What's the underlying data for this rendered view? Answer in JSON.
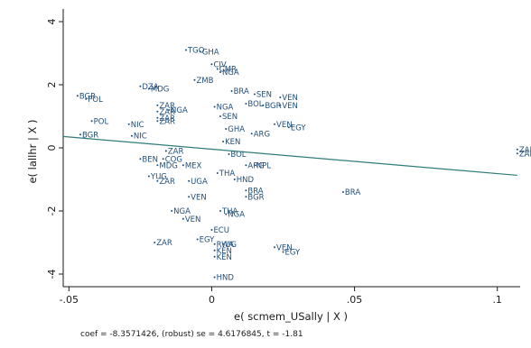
{
  "chart_data": {
    "type": "scatter",
    "title": "",
    "xlabel": "e( scmem_USally | X )",
    "ylabel": "e( lallhr | X )",
    "xlim": [
      -0.052,
      0.108
    ],
    "ylim": [
      -4.4,
      4.4
    ],
    "xticks": [
      -0.05,
      0,
      0.05,
      0.1
    ],
    "xtick_labels": [
      "-.05",
      "0",
      ".05",
      ".1"
    ],
    "yticks": [
      -4,
      -2,
      0,
      2,
      4
    ],
    "ytick_labels": [
      "-4",
      "-2",
      "0",
      "2",
      "4"
    ],
    "grid": false,
    "marker_color": "#1f4e79",
    "fit_line_color": "#2e7d7a",
    "fit_line": {
      "x": [
        -0.052,
        0.107
      ],
      "y": [
        0.36,
        -0.87
      ]
    },
    "note": "coef = -8.3571426, (robust) se = 4.6176845, t = -1.81",
    "labeled_points": [
      {
        "x": -0.009,
        "y": 3.1,
        "label": "TGO"
      },
      {
        "x": -0.004,
        "y": 3.05,
        "label": "GHA"
      },
      {
        "x": 0.0,
        "y": 2.65,
        "label": "CIV"
      },
      {
        "x": 0.002,
        "y": 2.5,
        "label": "CMR"
      },
      {
        "x": 0.003,
        "y": 2.4,
        "label": "NGA"
      },
      {
        "x": -0.006,
        "y": 2.15,
        "label": "ZMB"
      },
      {
        "x": -0.025,
        "y": 1.95,
        "label": "DZA"
      },
      {
        "x": -0.022,
        "y": 1.87,
        "label": "MDG"
      },
      {
        "x": -0.047,
        "y": 1.65,
        "label": "BGR"
      },
      {
        "x": -0.044,
        "y": 1.55,
        "label": "POL"
      },
      {
        "x": 0.015,
        "y": 1.7,
        "label": "SEN"
      },
      {
        "x": 0.024,
        "y": 1.6,
        "label": "VEN"
      },
      {
        "x": 0.024,
        "y": 1.35,
        "label": "VEN"
      },
      {
        "x": 0.012,
        "y": 1.4,
        "label": "BOL"
      },
      {
        "x": 0.018,
        "y": 1.35,
        "label": "BGR"
      },
      {
        "x": -0.019,
        "y": 1.35,
        "label": "ZAR"
      },
      {
        "x": -0.019,
        "y": 1.15,
        "label": "ZAR"
      },
      {
        "x": -0.015,
        "y": 1.2,
        "label": "NGA"
      },
      {
        "x": -0.019,
        "y": 0.95,
        "label": "ZAR"
      },
      {
        "x": -0.042,
        "y": 0.85,
        "label": "POL"
      },
      {
        "x": -0.029,
        "y": 0.75,
        "label": "NIC"
      },
      {
        "x": -0.046,
        "y": 0.42,
        "label": "BGR"
      },
      {
        "x": -0.028,
        "y": 0.38,
        "label": "NIC"
      },
      {
        "x": -0.019,
        "y": 0.85,
        "label": "ZAR"
      },
      {
        "x": 0.022,
        "y": 0.75,
        "label": "VEN"
      },
      {
        "x": 0.027,
        "y": 0.65,
        "label": "EGY"
      },
      {
        "x": 0.014,
        "y": 0.45,
        "label": "ARG"
      },
      {
        "x": -0.016,
        "y": -0.1,
        "label": "ZAR"
      },
      {
        "x": -0.025,
        "y": -0.35,
        "label": "BEN"
      },
      {
        "x": -0.017,
        "y": -0.35,
        "label": "COG"
      },
      {
        "x": -0.019,
        "y": -0.55,
        "label": "MDG"
      },
      {
        "x": -0.01,
        "y": -0.55,
        "label": "MEX"
      },
      {
        "x": 0.015,
        "y": -0.55,
        "label": "NPL"
      },
      {
        "x": 0.012,
        "y": -0.55,
        "label": "ARG"
      },
      {
        "x": -0.022,
        "y": -0.9,
        "label": "YUG"
      },
      {
        "x": -0.019,
        "y": -1.05,
        "label": "ZAR"
      },
      {
        "x": -0.008,
        "y": -1.05,
        "label": "UGA"
      },
      {
        "x": -0.008,
        "y": -1.55,
        "label": "VEN"
      },
      {
        "x": 0.012,
        "y": -1.35,
        "label": "BRA"
      },
      {
        "x": 0.012,
        "y": -1.55,
        "label": "BGR"
      },
      {
        "x": 0.046,
        "y": -1.4,
        "label": "BRA"
      },
      {
        "x": -0.014,
        "y": -2.0,
        "label": "NGA"
      },
      {
        "x": -0.01,
        "y": -2.25,
        "label": "VEN"
      },
      {
        "x": 0.003,
        "y": -2.0,
        "label": "THA"
      },
      {
        "x": 0.005,
        "y": -2.1,
        "label": "NGA"
      },
      {
        "x": 0.0,
        "y": -2.6,
        "label": "ECU"
      },
      {
        "x": -0.005,
        "y": -2.9,
        "label": "EGY"
      },
      {
        "x": -0.02,
        "y": -3.0,
        "label": "ZAR"
      },
      {
        "x": 0.001,
        "y": -3.05,
        "label": "RWA"
      },
      {
        "x": 0.004,
        "y": -3.05,
        "label": "UG"
      },
      {
        "x": 0.001,
        "y": -3.25,
        "label": "KEN"
      },
      {
        "x": 0.001,
        "y": -3.45,
        "label": "KEN"
      },
      {
        "x": 0.022,
        "y": -3.15,
        "label": "VEN"
      },
      {
        "x": 0.025,
        "y": -3.3,
        "label": "EGY"
      },
      {
        "x": 0.001,
        "y": -4.1,
        "label": "HND"
      },
      {
        "x": 0.107,
        "y": -0.05,
        "label": "ZAR"
      },
      {
        "x": 0.107,
        "y": -0.18,
        "label": "ZAR"
      },
      {
        "x": 0.003,
        "y": 1.0,
        "label": "SEN"
      },
      {
        "x": 0.005,
        "y": 0.6,
        "label": "GHA"
      },
      {
        "x": 0.004,
        "y": 0.2,
        "label": "KEN"
      },
      {
        "x": 0.006,
        "y": -0.2,
        "label": "BOL"
      },
      {
        "x": 0.002,
        "y": -0.8,
        "label": "THA"
      },
      {
        "x": 0.007,
        "y": 1.8,
        "label": "BRA"
      },
      {
        "x": 0.001,
        "y": 1.3,
        "label": "NGA"
      },
      {
        "x": 0.008,
        "y": -1.0,
        "label": "HND"
      }
    ]
  }
}
